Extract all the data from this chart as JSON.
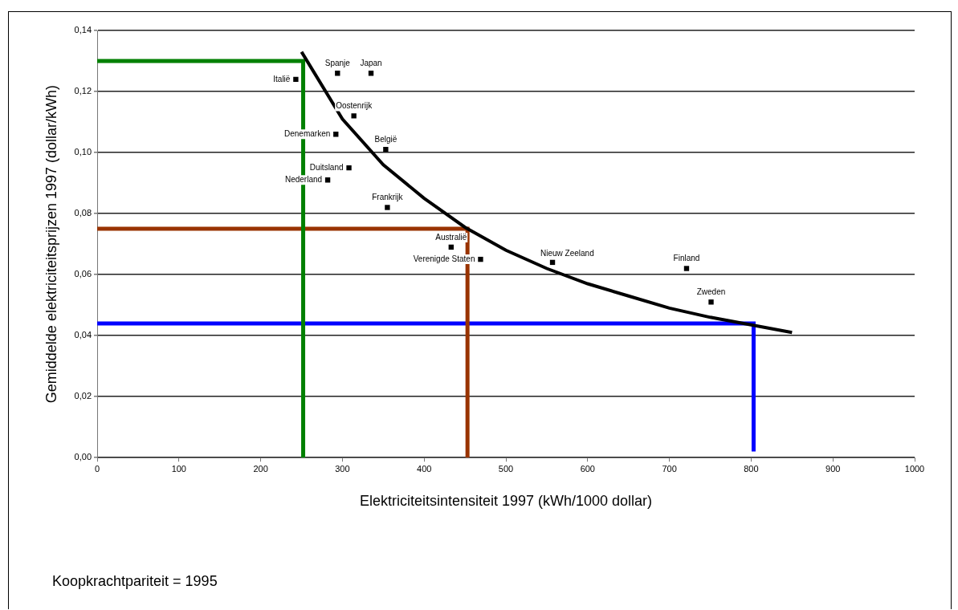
{
  "chart_data": {
    "type": "scatter",
    "xlabel": "Elektriciteitsintensiteit 1997 (kWh/1000 dollar)",
    "ylabel": "Gemiddelde elektriciteitsprijzen 1997 (dollar/kWh)",
    "xlim": [
      0,
      1000
    ],
    "xticks": [
      0,
      100,
      200,
      300,
      400,
      500,
      600,
      700,
      800,
      900,
      1000
    ],
    "ylim": [
      0,
      0.14
    ],
    "yticks": [
      {
        "value": 0,
        "label": "0,00"
      },
      {
        "value": 0.02,
        "label": "0,02"
      },
      {
        "value": 0.04,
        "label": "0,04"
      },
      {
        "value": 0.06,
        "label": "0,06"
      },
      {
        "value": 0.08,
        "label": "0,08"
      },
      {
        "value": 0.1,
        "label": "0,10"
      },
      {
        "value": 0.12,
        "label": "0,12"
      },
      {
        "value": 0.14,
        "label": "0,14"
      }
    ],
    "grid": "y",
    "legend": false,
    "marker": "square",
    "series": [
      {
        "type": "line",
        "marker": "none",
        "color": "#000000",
        "x": [
          250,
          300,
          350,
          400,
          450,
          500,
          550,
          600,
          650,
          700,
          750,
          800,
          850
        ],
        "values": [
          0.133,
          0.111,
          0.096,
          0.085,
          0.0755,
          0.068,
          0.062,
          0.057,
          0.053,
          0.049,
          0.046,
          0.0435,
          0.041
        ]
      },
      {
        "type": "line",
        "marker": "none",
        "color": "#008000",
        "x": [
          0,
          252,
          252
        ],
        "values": [
          0.13,
          0.13,
          0
        ]
      },
      {
        "type": "line",
        "marker": "none",
        "color": "#993300",
        "x": [
          0,
          453,
          453
        ],
        "values": [
          0.075,
          0.075,
          0
        ]
      },
      {
        "type": "line",
        "marker": "none",
        "color": "#0000ff",
        "x": [
          0,
          803,
          803
        ],
        "values": [
          0.044,
          0.044,
          0.002
        ]
      },
      {
        "type": "scatter",
        "color": "#000000",
        "x": [
          243,
          294,
          335,
          314,
          292,
          353,
          308,
          282,
          355,
          433,
          469,
          557,
          721,
          751
        ],
        "values": [
          0.124,
          0.126,
          0.126,
          0.112,
          0.106,
          0.101,
          0.095,
          0.091,
          0.082,
          0.069,
          0.065,
          0.064,
          0.062,
          0.051
        ]
      }
    ],
    "annotations": [
      {
        "text": "Italië",
        "x": 243,
        "y": 0.124
      },
      {
        "text": "Spanje",
        "x": 294,
        "y": 0.126
      },
      {
        "text": "Japan",
        "x": 335,
        "y": 0.126
      },
      {
        "text": "Oostenrijk",
        "x": 314,
        "y": 0.112
      },
      {
        "text": "Denemarken",
        "x": 292,
        "y": 0.106
      },
      {
        "text": "België",
        "x": 353,
        "y": 0.101
      },
      {
        "text": "Duitsland",
        "x": 308,
        "y": 0.095
      },
      {
        "text": "Nederland",
        "x": 282,
        "y": 0.091
      },
      {
        "text": "Frankrijk",
        "x": 355,
        "y": 0.082
      },
      {
        "text": "Australië",
        "x": 433,
        "y": 0.069
      },
      {
        "text": "Verenigde Staten",
        "x": 469,
        "y": 0.065
      },
      {
        "text": "Nieuw Zeeland",
        "x": 557,
        "y": 0.064
      },
      {
        "text": "Finland",
        "x": 721,
        "y": 0.062
      },
      {
        "text": "Zweden",
        "x": 751,
        "y": 0.051
      },
      "Koopkrachtpariteit = 1995"
    ]
  }
}
